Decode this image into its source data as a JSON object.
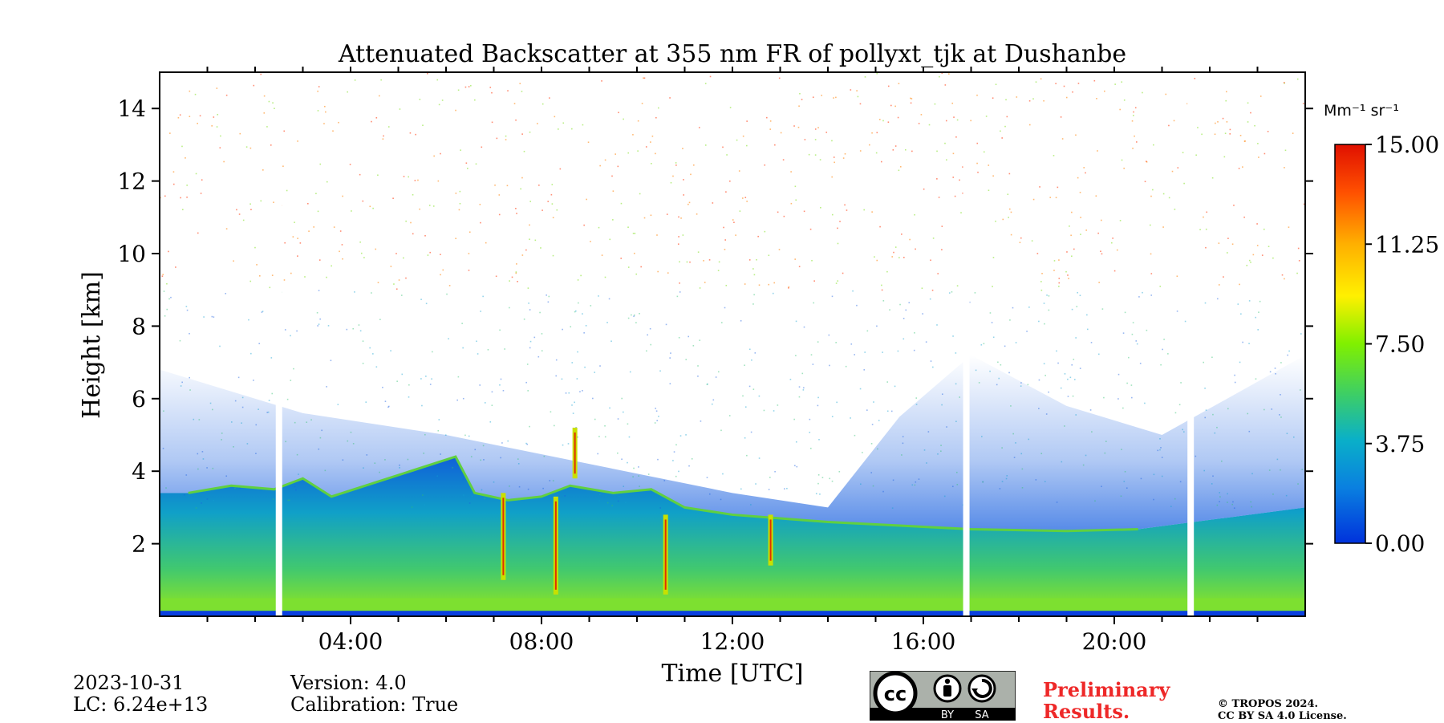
{
  "chart_data": {
    "type": "heatmap",
    "title": "Attenuated Backscatter at 355 nm FR of pollyxt_tjk at Dushanbe",
    "xlabel": "Time [UTC]",
    "ylabel": "Height [km]",
    "x_range_hours": [
      0,
      24
    ],
    "ylim_km": [
      0,
      15
    ],
    "x_ticks": [
      {
        "hour": 4,
        "label": "04:00"
      },
      {
        "hour": 8,
        "label": "08:00"
      },
      {
        "hour": 12,
        "label": "12:00"
      },
      {
        "hour": 16,
        "label": "16:00"
      },
      {
        "hour": 20,
        "label": "20:00"
      }
    ],
    "y_ticks": [
      {
        "km": 2,
        "label": "2"
      },
      {
        "km": 4,
        "label": "4"
      },
      {
        "km": 6,
        "label": "6"
      },
      {
        "km": 8,
        "label": "8"
      },
      {
        "km": 10,
        "label": "10"
      },
      {
        "km": 12,
        "label": "12"
      },
      {
        "km": 14,
        "label": "14"
      }
    ],
    "colorbar": {
      "unit_label": "Mm⁻¹ sr⁻¹",
      "range": [
        0,
        15
      ],
      "ticks": [
        {
          "value": 0,
          "label": "0.00"
        },
        {
          "value": 3.75,
          "label": "3.75"
        },
        {
          "value": 7.5,
          "label": "7.50"
        },
        {
          "value": 11.25,
          "label": "11.25"
        },
        {
          "value": 15,
          "label": "15.00"
        }
      ],
      "colors": [
        "#0032dc",
        "#0a9fd0",
        "#3cd058",
        "#80f000",
        "#fff000",
        "#ffa000",
        "#ff3000",
        "#e00000"
      ]
    },
    "data_gaps_hours": [
      2.5,
      16.9,
      21.6
    ],
    "boundary_layer_top_km": [
      {
        "hour": 0.6,
        "km": 3.4
      },
      {
        "hour": 1.5,
        "km": 3.6
      },
      {
        "hour": 2.4,
        "km": 3.5
      },
      {
        "hour": 3.0,
        "km": 3.8
      },
      {
        "hour": 3.6,
        "km": 3.3
      },
      {
        "hour": 6.2,
        "km": 4.4
      },
      {
        "hour": 6.6,
        "km": 3.4
      },
      {
        "hour": 7.3,
        "km": 3.2
      },
      {
        "hour": 8.0,
        "km": 3.3
      },
      {
        "hour": 8.6,
        "km": 3.6
      },
      {
        "hour": 9.5,
        "km": 3.4
      },
      {
        "hour": 10.3,
        "km": 3.5
      },
      {
        "hour": 11.0,
        "km": 3.0
      },
      {
        "hour": 12.0,
        "km": 2.8
      },
      {
        "hour": 13.0,
        "km": 2.7
      },
      {
        "hour": 14.0,
        "km": 2.6
      },
      {
        "hour": 17.0,
        "km": 2.4
      },
      {
        "hour": 19.0,
        "km": 2.35
      },
      {
        "hour": 20.5,
        "km": 2.4
      }
    ],
    "cloud_features": [
      {
        "hour": 7.2,
        "km_top": 3.4,
        "km_bottom": 1.0
      },
      {
        "hour": 8.3,
        "km_top": 3.3,
        "km_bottom": 0.6
      },
      {
        "hour": 8.7,
        "km_top": 5.2,
        "km_bottom": 3.8
      },
      {
        "hour": 10.6,
        "km_top": 2.8,
        "km_bottom": 0.6
      },
      {
        "hour": 12.8,
        "km_top": 2.8,
        "km_bottom": 1.4
      }
    ]
  },
  "footer": {
    "date": "2023-10-31",
    "lc": "LC: 6.24e+13",
    "version": "Version: 4.0",
    "calibration": "Calibration: True",
    "license_badge": {
      "cc": "cc",
      "by": "BY",
      "sa": "SA"
    },
    "preliminary_line1": "Preliminary",
    "preliminary_line2": "Results.",
    "copyright_line1": "© TROPOS 2024.",
    "copyright_line2": "CC BY SA 4.0 License."
  }
}
